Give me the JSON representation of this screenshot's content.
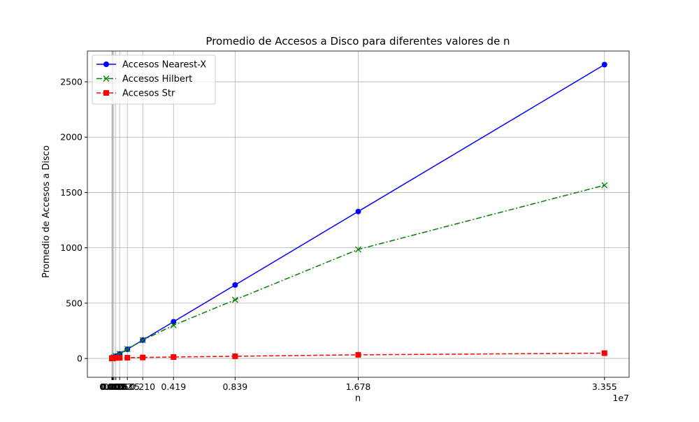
{
  "chart_data": {
    "type": "line",
    "title": "Promedio de Accesos a Disco para diferentes valores de n",
    "xlabel": "n",
    "ylabel": "Promedio de Accesos a Disco",
    "x_offset_label": "1e7",
    "x": [
      1024,
      2048,
      4096,
      8192,
      16384,
      32768,
      65536,
      131072,
      262144,
      524288,
      1048576,
      2097152,
      4194304,
      8388608,
      16777216,
      33554432
    ],
    "series": [
      {
        "name": "Accesos Nearest-X",
        "color": "#0000ff",
        "linestyle": "solid",
        "marker": "circle",
        "values": [
          1,
          1,
          1,
          1,
          1,
          3,
          5,
          10,
          21,
          41,
          83,
          166,
          332,
          664,
          1328,
          2655
        ]
      },
      {
        "name": "Accesos Hilbert",
        "color": "#008000",
        "linestyle": "dashdot",
        "marker": "x",
        "values": [
          1,
          1,
          1,
          1,
          2,
          3,
          5,
          10,
          21,
          42,
          85,
          165,
          300,
          530,
          985,
          1565
        ]
      },
      {
        "name": "Accesos Str",
        "color": "#ff0000",
        "linestyle": "dashed",
        "marker": "square",
        "values": [
          2,
          2,
          2,
          3,
          3,
          3,
          4,
          4,
          5,
          6,
          7,
          9,
          13,
          20,
          33,
          48
        ]
      }
    ],
    "xlim": [
      -1676646,
      35232102
    ],
    "ylim": [
      -170,
      2778
    ],
    "xticks": [
      {
        "value": 1024,
        "label": "0.000"
      },
      {
        "value": 2048,
        "label": "0.000"
      },
      {
        "value": 4096,
        "label": "0.000"
      },
      {
        "value": 8192,
        "label": "0.001"
      },
      {
        "value": 16384,
        "label": "0.002"
      },
      {
        "value": 32768,
        "label": "0.003"
      },
      {
        "value": 65536,
        "label": "0.007"
      },
      {
        "value": 131072,
        "label": "0.013"
      },
      {
        "value": 262144,
        "label": "0.026"
      },
      {
        "value": 524288,
        "label": "0.052"
      },
      {
        "value": 1048576,
        "label": "0.105"
      },
      {
        "value": 2097152,
        "label": "0.210"
      },
      {
        "value": 4194304,
        "label": "0.419"
      },
      {
        "value": 8388608,
        "label": "0.839"
      },
      {
        "value": 16777216,
        "label": "1.678"
      },
      {
        "value": 33554432,
        "label": "3.355"
      }
    ],
    "yticks": [
      0,
      500,
      1000,
      1500,
      2000,
      2500
    ],
    "grid": true,
    "legend": "upper-left"
  }
}
